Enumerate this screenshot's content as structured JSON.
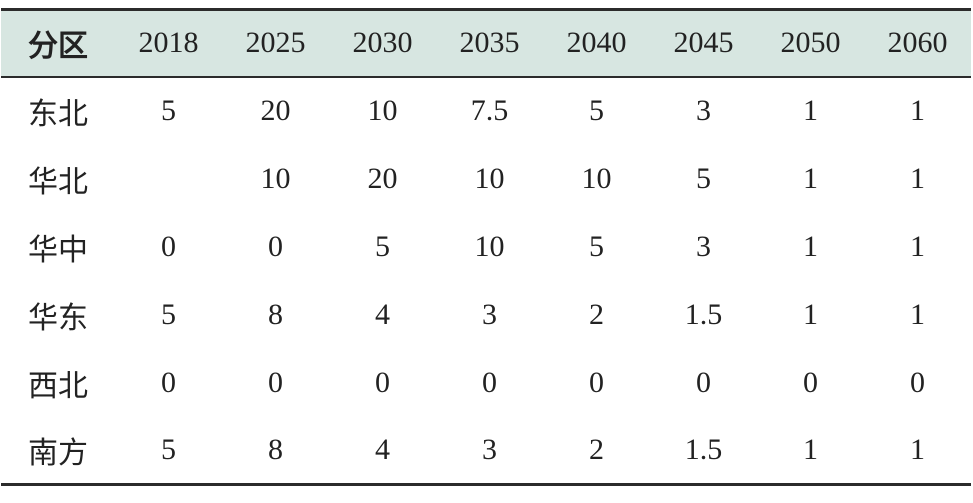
{
  "table": {
    "header_label": "分区",
    "years": [
      "2018",
      "2025",
      "2030",
      "2035",
      "2040",
      "2045",
      "2050",
      "2060"
    ],
    "rows": [
      {
        "region": "东北",
        "values": [
          "5",
          "20",
          "10",
          "7.5",
          "5",
          "3",
          "1",
          "1"
        ]
      },
      {
        "region": "华北",
        "values": [
          "",
          "10",
          "20",
          "10",
          "10",
          "5",
          "1",
          "1"
        ]
      },
      {
        "region": "华中",
        "values": [
          "0",
          "0",
          "5",
          "10",
          "5",
          "3",
          "1",
          "1"
        ]
      },
      {
        "region": "华东",
        "values": [
          "5",
          "8",
          "4",
          "3",
          "2",
          "1.5",
          "1",
          "1"
        ]
      },
      {
        "region": "西北",
        "values": [
          "0",
          "0",
          "0",
          "0",
          "0",
          "0",
          "0",
          "0"
        ]
      },
      {
        "region": "南方",
        "values": [
          "5",
          "8",
          "4",
          "3",
          "2",
          "1.5",
          "1",
          "1"
        ]
      }
    ],
    "header_background": "#d7e6e1",
    "rule_color": "#2b2b2b"
  }
}
